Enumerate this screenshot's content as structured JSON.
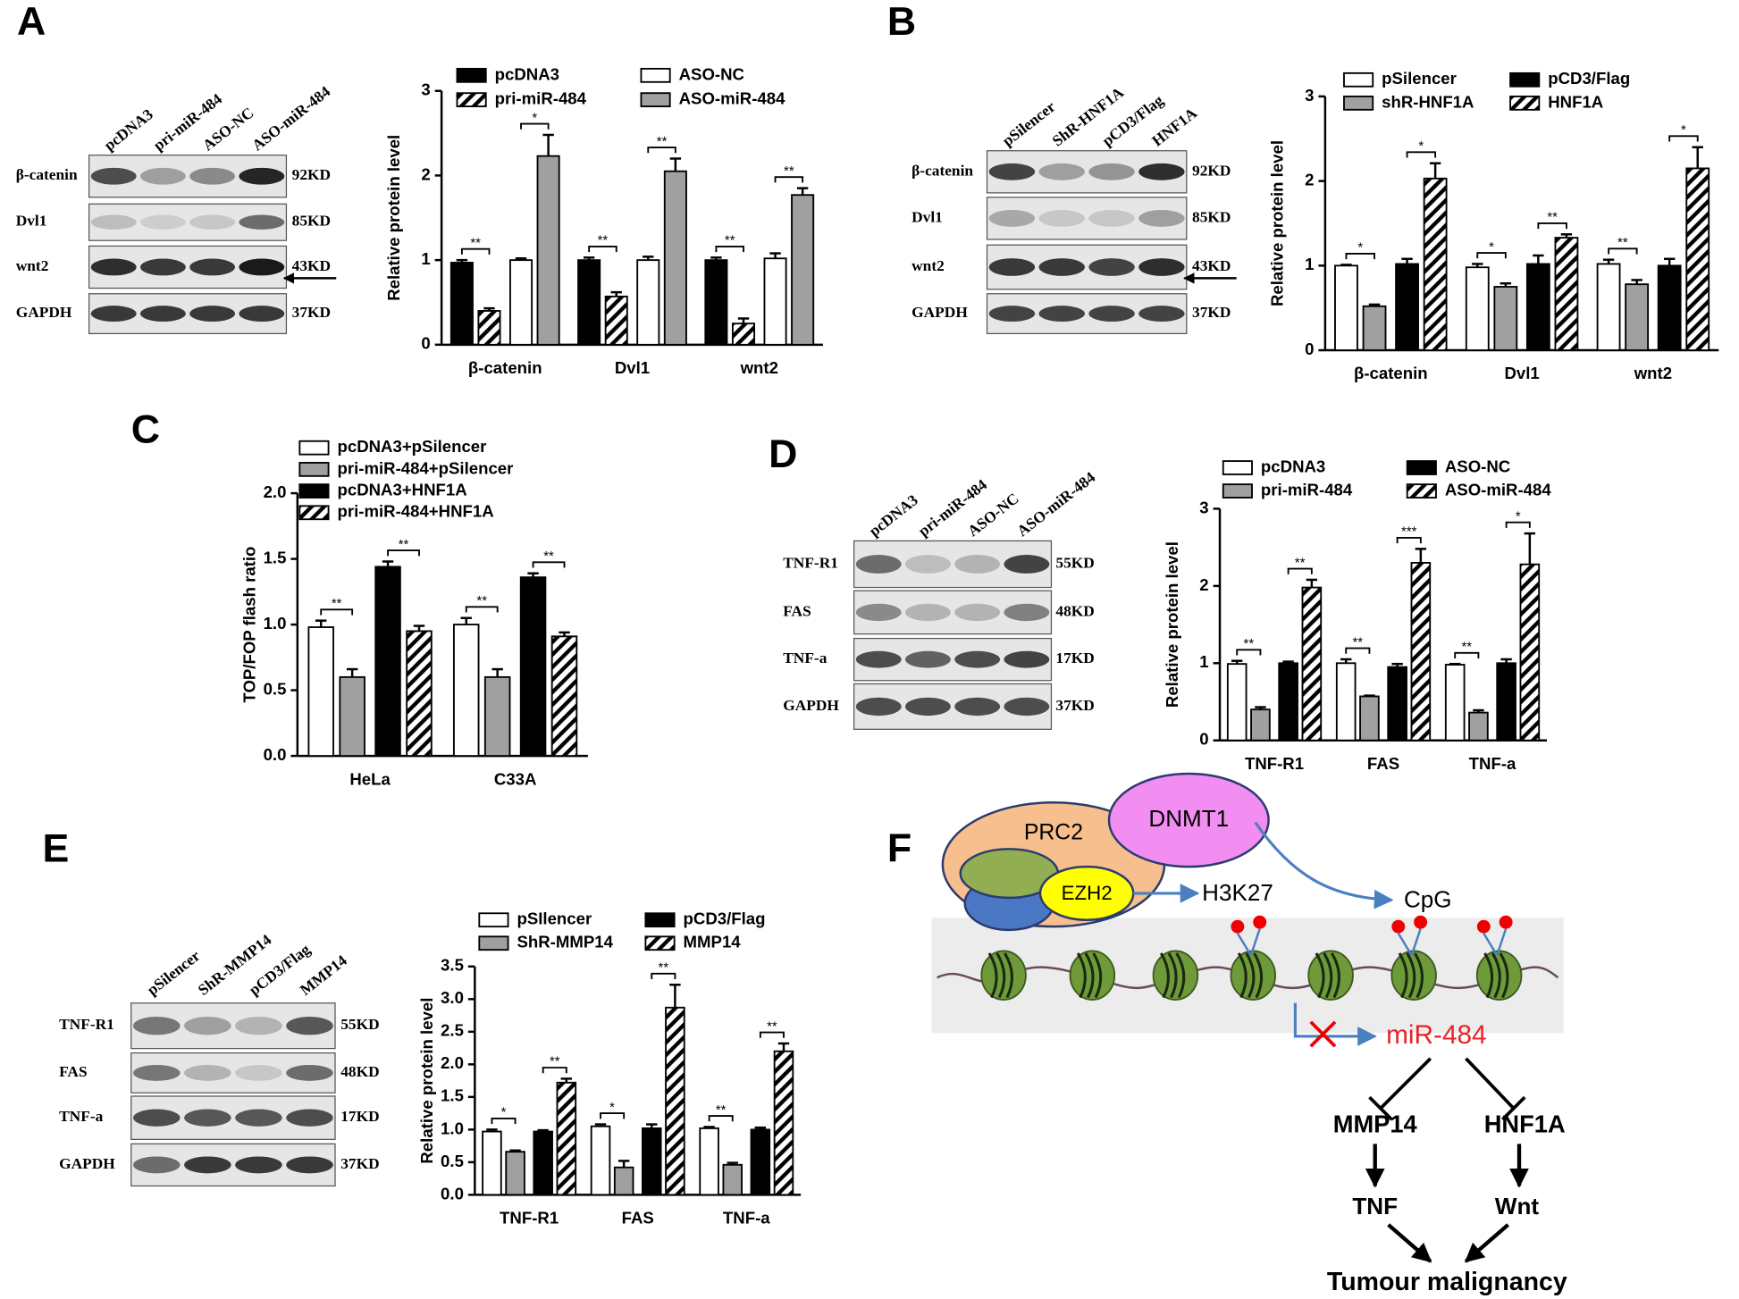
{
  "chart_data": [
    {
      "type": "bar",
      "label": "A",
      "y_label": "Relative protein level",
      "categories": [
        "β-catenin",
        "Dvl1",
        "wnt2"
      ],
      "series": [
        {
          "name": "pcDNA3",
          "color": "#000000",
          "values": [
            0.97,
            1.0,
            1.0
          ],
          "errors": [
            0.03,
            0.03,
            0.03
          ]
        },
        {
          "name": "pri-miR-484",
          "color": "#ffffff",
          "hatch": true,
          "values": [
            0.4,
            0.57,
            0.25
          ],
          "errors": [
            0.03,
            0.05,
            0.06
          ]
        },
        {
          "name": "ASO-NC",
          "color": "#ffffff",
          "values": [
            1.0,
            1.0,
            1.02
          ],
          "errors": [
            0.02,
            0.04,
            0.06
          ]
        },
        {
          "name": "ASO-miR-484",
          "color": "#a0a0a0",
          "values": [
            2.23,
            2.05,
            1.77
          ],
          "errors": [
            0.25,
            0.15,
            0.08
          ]
        }
      ],
      "significance": [
        [
          "**",
          "*"
        ],
        [
          "**",
          "**"
        ],
        [
          "**",
          "**"
        ]
      ],
      "ylim": [
        0,
        3
      ],
      "yticks": [
        0,
        1,
        2,
        3
      ],
      "legend_columns": 2
    },
    {
      "type": "bar",
      "label": "B",
      "y_label": "Relative protein level",
      "categories": [
        "β-catenin",
        "Dvl1",
        "wnt2"
      ],
      "series": [
        {
          "name": "pSilencer",
          "color": "#ffffff",
          "values": [
            1.0,
            0.98,
            1.02
          ],
          "errors": [
            0.01,
            0.04,
            0.05
          ]
        },
        {
          "name": "shR-HNF1A",
          "color": "#a0a0a0",
          "values": [
            0.52,
            0.75,
            0.78
          ],
          "errors": [
            0.02,
            0.04,
            0.05
          ]
        },
        {
          "name": "pCD3/Flag",
          "color": "#000000",
          "values": [
            1.02,
            1.02,
            1.0
          ],
          "errors": [
            0.06,
            0.1,
            0.08
          ]
        },
        {
          "name": "HNF1A",
          "color": "#ffffff",
          "hatch": true,
          "values": [
            2.03,
            1.33,
            2.15
          ],
          "errors": [
            0.18,
            0.04,
            0.25
          ]
        }
      ],
      "significance": [
        [
          "*",
          "*"
        ],
        [
          "*",
          "**"
        ],
        [
          "**",
          "*"
        ]
      ],
      "ylim": [
        0,
        3
      ],
      "yticks": [
        0,
        1,
        2,
        3
      ],
      "legend_columns": 2
    },
    {
      "type": "bar",
      "label": "C",
      "y_label": "TOP/FOP flash ratio",
      "categories": [
        "HeLa",
        "C33A"
      ],
      "series": [
        {
          "name": "pcDNA3+pSilencer",
          "color": "#ffffff",
          "values": [
            0.98,
            1.0
          ],
          "errors": [
            0.05,
            0.05
          ]
        },
        {
          "name": "pri-miR-484+pSilencer",
          "color": "#a0a0a0",
          "values": [
            0.6,
            0.6
          ],
          "errors": [
            0.06,
            0.06
          ]
        },
        {
          "name": "pcDNA3+HNF1A",
          "color": "#000000",
          "values": [
            1.44,
            1.36
          ],
          "errors": [
            0.04,
            0.03
          ]
        },
        {
          "name": "pri-miR-484+HNF1A",
          "color": "#ffffff",
          "hatch": true,
          "values": [
            0.95,
            0.91
          ],
          "errors": [
            0.04,
            0.03
          ]
        }
      ],
      "significance": [
        [
          "**",
          "**"
        ],
        [
          "**",
          "**"
        ]
      ],
      "ylim": [
        0,
        2.0
      ],
      "yticks": [
        {
          "value": 0,
          "label": "0.0"
        },
        {
          "value": 0.5,
          "label": "0.5"
        },
        {
          "value": 1.0,
          "label": "1.0"
        },
        {
          "value": 1.5,
          "label": "1.5"
        },
        {
          "value": 2.0,
          "label": "2.0"
        }
      ],
      "legend_columns": 1
    },
    {
      "type": "bar",
      "label": "D",
      "y_label": "Relative protein level",
      "categories": [
        "TNF-R1",
        "FAS",
        "TNF-a"
      ],
      "series": [
        {
          "name": "pcDNA3",
          "color": "#ffffff",
          "values": [
            0.99,
            1.0,
            0.98
          ],
          "errors": [
            0.04,
            0.05,
            0.01
          ]
        },
        {
          "name": "pri-miR-484",
          "color": "#a0a0a0",
          "values": [
            0.4,
            0.57,
            0.36
          ],
          "errors": [
            0.03,
            0.01,
            0.03
          ]
        },
        {
          "name": "ASO-NC",
          "color": "#000000",
          "values": [
            1.0,
            0.95,
            1.0
          ],
          "errors": [
            0.02,
            0.04,
            0.05
          ]
        },
        {
          "name": "ASO-miR-484",
          "color": "#ffffff",
          "hatch": true,
          "values": [
            1.98,
            2.3,
            2.28
          ],
          "errors": [
            0.1,
            0.18,
            0.4
          ]
        }
      ],
      "significance": [
        [
          "**",
          "**"
        ],
        [
          "**",
          "***"
        ],
        [
          "**",
          "*"
        ]
      ],
      "ylim": [
        0,
        3
      ],
      "yticks": [
        0,
        1,
        2,
        3
      ],
      "legend_columns": 2
    },
    {
      "type": "bar",
      "label": "E",
      "y_label": "Relative protein level",
      "categories": [
        "TNF-R1",
        "FAS",
        "TNF-a"
      ],
      "series": [
        {
          "name": "pSIlencer",
          "color": "#ffffff",
          "values": [
            0.97,
            1.05,
            1.02
          ],
          "errors": [
            0.03,
            0.03,
            0.02
          ]
        },
        {
          "name": "ShR-MMP14",
          "color": "#a0a0a0",
          "values": [
            0.66,
            0.42,
            0.46
          ],
          "errors": [
            0.02,
            0.1,
            0.03
          ]
        },
        {
          "name": "pCD3/Flag",
          "color": "#000000",
          "values": [
            0.97,
            1.02,
            1.0
          ],
          "errors": [
            0.02,
            0.06,
            0.03
          ]
        },
        {
          "name": "MMP14",
          "color": "#ffffff",
          "hatch": true,
          "values": [
            1.72,
            2.87,
            2.2
          ],
          "errors": [
            0.06,
            0.35,
            0.12
          ]
        }
      ],
      "significance": [
        [
          "*",
          "**"
        ],
        [
          "*",
          "**"
        ],
        [
          "**",
          "**"
        ]
      ],
      "ylim": [
        0,
        3.5
      ],
      "yticks": [
        {
          "value": 0,
          "label": "0.0"
        },
        {
          "value": 0.5,
          "label": "0.5"
        },
        {
          "value": 1.0,
          "label": "1.0"
        },
        {
          "value": 1.5,
          "label": "1.5"
        },
        {
          "value": 2.0,
          "label": "2.0"
        },
        {
          "value": 2.5,
          "label": "2.5"
        },
        {
          "value": 3.0,
          "label": "3.0"
        },
        {
          "value": 3.5,
          "label": "3.5"
        }
      ],
      "legend_columns": 2
    }
  ],
  "blots": [
    {
      "lanes": [
        "pcDNA3",
        "pri-miR-484",
        "ASO-NC",
        "ASO-miR-484"
      ],
      "rows": [
        "β-catenin",
        "Dvl1",
        "wnt2",
        "GAPDH"
      ],
      "sizes": [
        "92KD",
        "85KD",
        "43KD",
        "37KD"
      ]
    },
    {
      "lanes": [
        "pSilencer",
        "ShR-HNF1A",
        "pCD3/Flag",
        "HNF1A"
      ],
      "rows": [
        "β-catenin",
        "Dvl1",
        "wnt2",
        "GAPDH"
      ],
      "sizes": [
        "92KD",
        "85KD",
        "43KD",
        "37KD"
      ]
    },
    {
      "lanes": [
        "pcDNA3",
        "pri-miR-484",
        "ASO-NC",
        "ASO-miR-484"
      ],
      "rows": [
        "TNF-R1",
        "FAS",
        "TNF-a",
        "GAPDH"
      ],
      "sizes": [
        "55KD",
        "48KD",
        "17KD",
        "37KD"
      ]
    },
    {
      "lanes": [
        "pSilencer",
        "ShR-MMP14",
        "pCD3/Flag",
        "MMP14"
      ],
      "rows": [
        "TNF-R1",
        "FAS",
        "TNF-a",
        "GAPDH"
      ],
      "sizes": [
        "55KD",
        "48KD",
        "17KD",
        "37KD"
      ]
    }
  ],
  "diagram": {
    "label": "F",
    "prc2": "PRC2",
    "dnmt1": "DNMT1",
    "ezh2": "EZH2",
    "h3k27": "H3K27",
    "cpg": "CpG",
    "mirna": "miR-484",
    "mmp14": "MMP14",
    "hnf1a": "HNF1A",
    "tnf": "TNF",
    "wnt": "Wnt",
    "outcome": "Tumour malignancy"
  }
}
